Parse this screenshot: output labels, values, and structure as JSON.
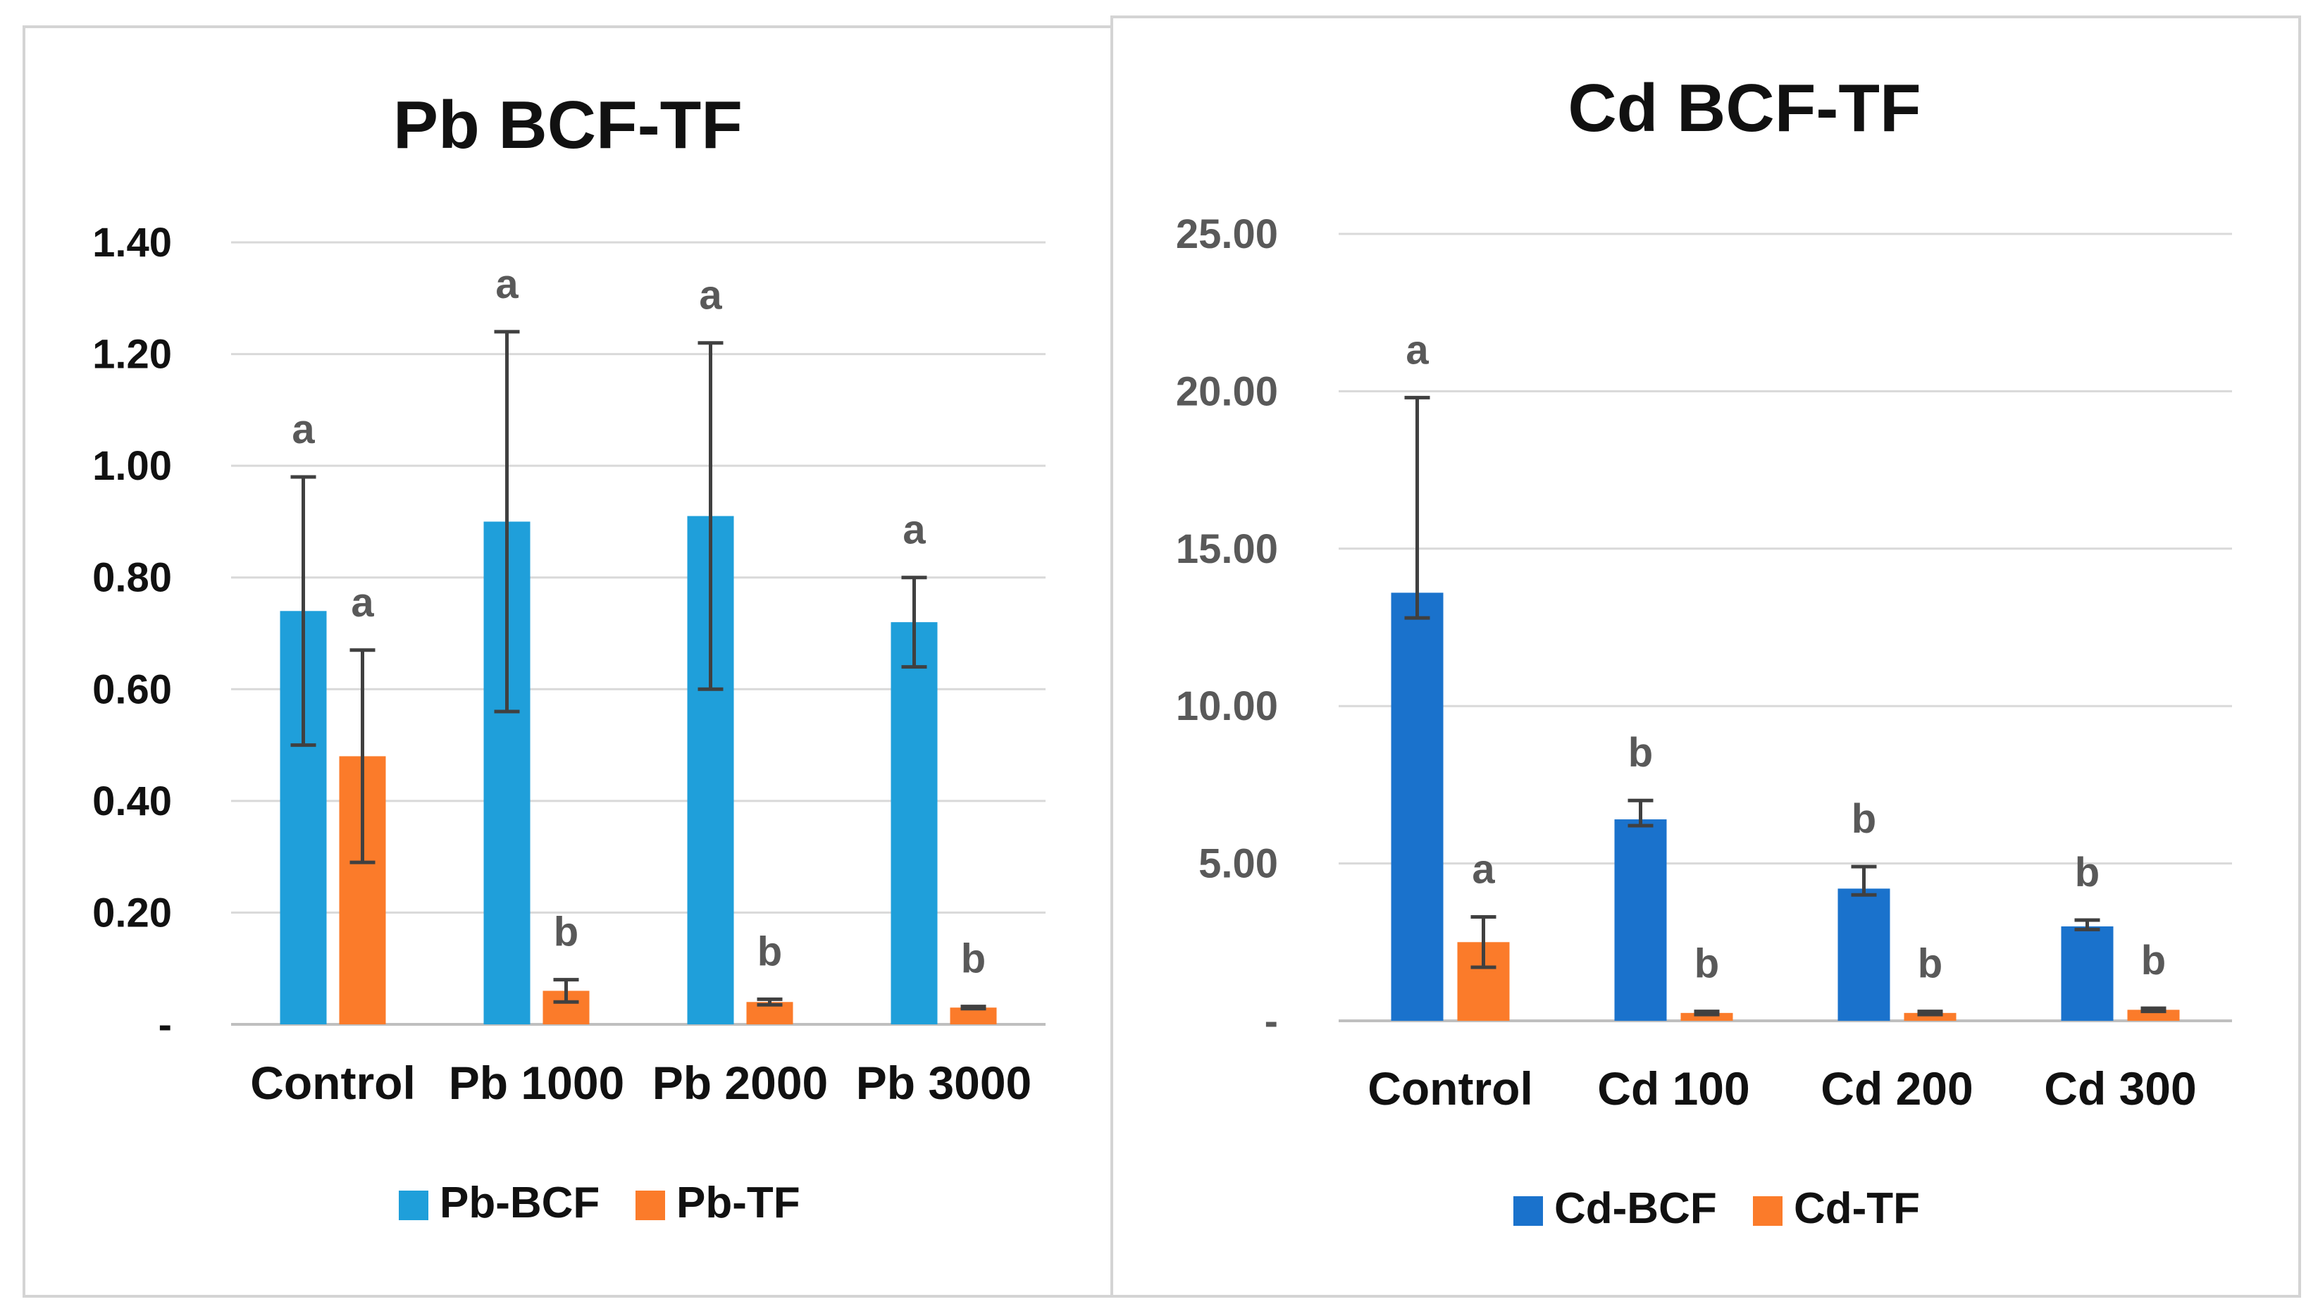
{
  "chart_data": [
    {
      "type": "bar",
      "title": "Pb BCF-TF",
      "categories": [
        "Control",
        "Pb 1000",
        "Pb 2000",
        "Pb 3000"
      ],
      "y_ticks": [
        "-",
        "0.20",
        "0.40",
        "0.60",
        "0.80",
        "1.00",
        "1.20",
        "1.40"
      ],
      "ylim": [
        0,
        1.4
      ],
      "xlabel": "",
      "ylabel": "",
      "grid": true,
      "legend_position": "bottom",
      "series": [
        {
          "name": "Pb-BCF",
          "color": "#1f9fda",
          "values": [
            0.74,
            0.9,
            0.91,
            0.72
          ],
          "err_low": [
            0.5,
            0.56,
            0.6,
            0.64
          ],
          "err_high": [
            0.98,
            1.24,
            1.22,
            0.8
          ],
          "labels": [
            "a",
            "a",
            "a",
            "a"
          ]
        },
        {
          "name": "Pb-TF",
          "color": "#fb7b2a",
          "values": [
            0.48,
            0.06,
            0.04,
            0.03
          ],
          "err_low": [
            0.29,
            0.04,
            0.035,
            0.028
          ],
          "err_high": [
            0.67,
            0.08,
            0.045,
            0.032
          ],
          "labels": [
            "a",
            "b",
            "b",
            "b"
          ]
        }
      ]
    },
    {
      "type": "bar",
      "title": "Cd  BCF-TF",
      "categories": [
        "Control",
        "Cd 100",
        "Cd 200",
        "Cd 300"
      ],
      "y_ticks": [
        "-",
        "5.00",
        "10.00",
        "15.00",
        "20.00",
        "25.00"
      ],
      "ylim": [
        0,
        25
      ],
      "xlabel": "",
      "ylabel": "",
      "grid": true,
      "legend_position": "bottom",
      "series": [
        {
          "name": "Cd-BCF",
          "color": "#1a72cc",
          "values": [
            13.6,
            6.4,
            4.2,
            3.0
          ],
          "err_low": [
            12.8,
            6.2,
            4.0,
            2.9
          ],
          "err_high": [
            19.8,
            7.0,
            4.9,
            3.2
          ],
          "labels": [
            "a",
            "b",
            "b",
            "b"
          ]
        },
        {
          "name": "Cd-TF",
          "color": "#fb7b2a",
          "values": [
            2.5,
            0.25,
            0.25,
            0.35
          ],
          "err_low": [
            1.7,
            0.2,
            0.2,
            0.3
          ],
          "err_high": [
            3.3,
            0.3,
            0.3,
            0.4
          ],
          "labels": [
            "a",
            "b",
            "b",
            "b"
          ]
        }
      ]
    }
  ]
}
